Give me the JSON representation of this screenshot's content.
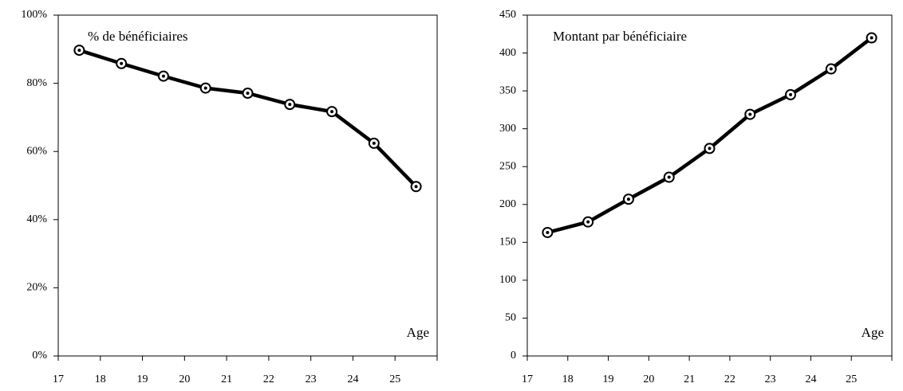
{
  "chart_data": [
    {
      "type": "line",
      "annotation": "% de bénéficiaires",
      "xlabel": "Age",
      "categories": [
        "17",
        "18",
        "19",
        "20",
        "21",
        "22",
        "23",
        "24",
        "25"
      ],
      "values": [
        89.7,
        85.8,
        82.1,
        78.6,
        77.1,
        73.8,
        71.7,
        62.4,
        49.7
      ],
      "color": "#000000",
      "ylim": [
        0,
        100
      ],
      "yticks": [
        {
          "value": 0,
          "label": "0%"
        },
        {
          "value": 20,
          "label": "20%"
        },
        {
          "value": 40,
          "label": "40%"
        },
        {
          "value": 60,
          "label": "60%"
        },
        {
          "value": 80,
          "label": "80%"
        },
        {
          "value": 100,
          "label": "100%"
        }
      ]
    },
    {
      "type": "line",
      "annotation": "Montant par bénéficiaire",
      "xlabel": "Age",
      "categories": [
        "17",
        "18",
        "19",
        "20",
        "21",
        "22",
        "23",
        "24",
        "25"
      ],
      "values": [
        163,
        177,
        207,
        236,
        274,
        319,
        345,
        379,
        420
      ],
      "color": "#000000",
      "ylim": [
        0,
        450
      ],
      "yticks": [
        0,
        50,
        100,
        150,
        200,
        250,
        300,
        350,
        400,
        450
      ]
    }
  ]
}
